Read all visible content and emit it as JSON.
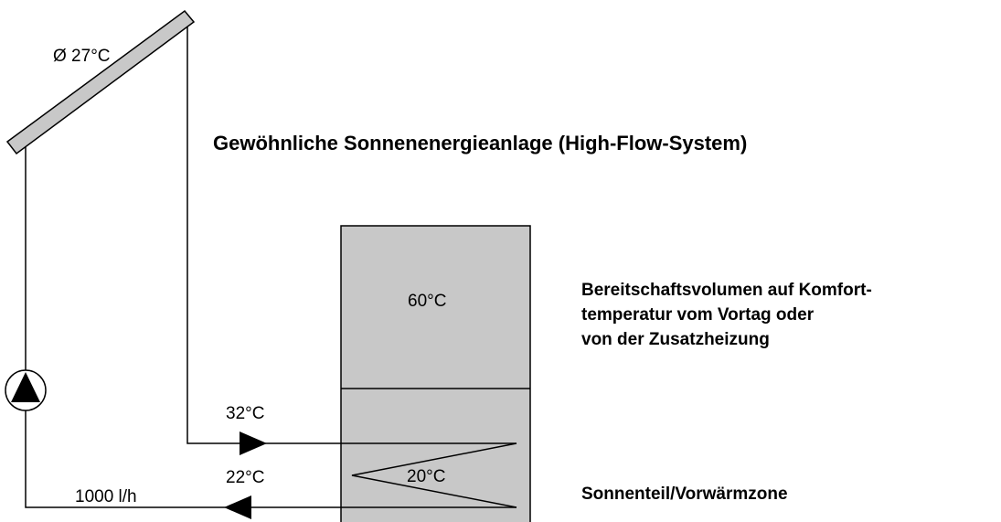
{
  "title": "Gewöhnliche Sonnenenergieanlage (High-Flow-System)",
  "collector": {
    "label": "Ø 27°C"
  },
  "tank": {
    "top_temp": "60°C",
    "bottom_temp": "20°C"
  },
  "pipes": {
    "flow_temp": "32°C",
    "return_temp": "22°C",
    "flow_rate": "1000 l/h"
  },
  "annotations": {
    "upper_zone": [
      "Bereitschaftsvolumen auf Komfort-",
      "temperatur vom Vortag oder",
      "von der Zusatzheizung"
    ],
    "lower_zone": "Sonnenteil/Vorwärmzone"
  }
}
